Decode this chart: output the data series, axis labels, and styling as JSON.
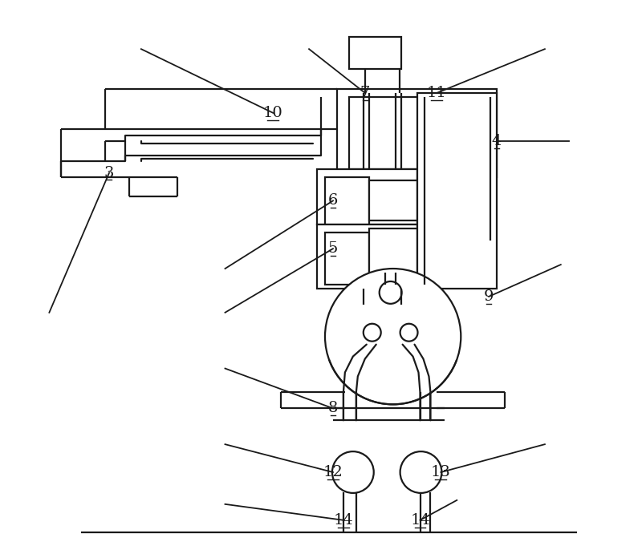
{
  "bg_color": "#ffffff",
  "line_color": "#1a1a1a",
  "lw": 1.6,
  "fig_width": 8.0,
  "fig_height": 6.91
}
